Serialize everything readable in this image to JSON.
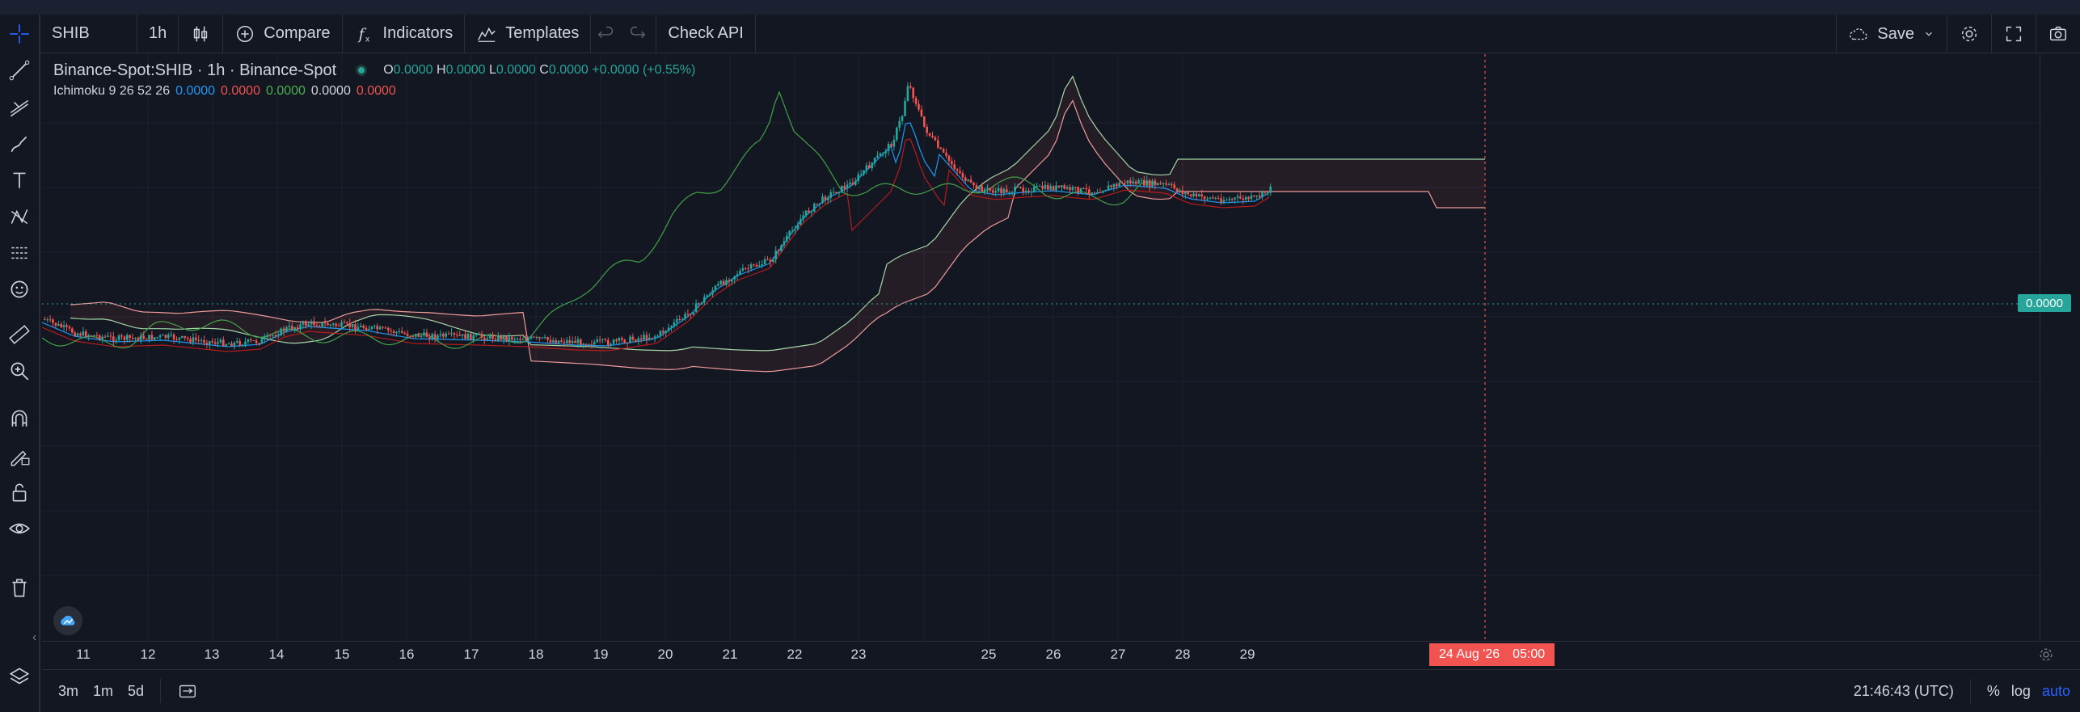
{
  "header": {
    "symbol": "SHIB",
    "interval": "1h",
    "compare": "Compare",
    "indicators": "Indicators",
    "templates": "Templates",
    "check_api": "Check API",
    "save": "Save"
  },
  "legend": {
    "title": "Binance-Spot:SHIB · 1h · Binance-Spot",
    "o_label": "O",
    "o_value": "0.0000",
    "h_label": "H",
    "h_value": "0.0000",
    "l_label": "L",
    "l_value": "0.0000",
    "c_label": "C",
    "c_value": "0.0000",
    "change": "+0.0000 (+0.55%)",
    "indicator_name": "Ichimoku 9 26 52 26",
    "indicator_values": [
      "0.0000",
      "0.0000",
      "0.0000",
      "0.0000",
      "0.0000"
    ],
    "indicator_colors": [
      "#2196f3",
      "#f05350",
      "#4caf50",
      "#d1d4dc",
      "#f05350"
    ]
  },
  "price_axis": {
    "last_price": "0.0000"
  },
  "time_axis": {
    "ticks": [
      "11",
      "12",
      "13",
      "14",
      "15",
      "16",
      "17",
      "18",
      "19",
      "20",
      "21",
      "22",
      "23",
      "25",
      "26",
      "27",
      "28",
      "29"
    ],
    "crosshair_date": "24 Aug '26",
    "crosshair_time": "05:00"
  },
  "bottom": {
    "ranges": [
      "3m",
      "1m",
      "5d"
    ],
    "clock": "21:46:43 (UTC)",
    "percent": "%",
    "log": "log",
    "auto": "auto"
  },
  "colors": {
    "up": "#26a69a",
    "down": "#f05350",
    "conversion": "#2196f3",
    "base": "#b71c1c",
    "lagging": "#43a047",
    "span_a": "#a5d6a7",
    "span_b": "#ef9a9a"
  }
}
